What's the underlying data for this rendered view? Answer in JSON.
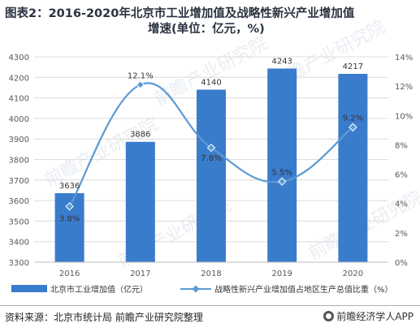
{
  "title_line1": "图表2：2016-2020年北京市工业增加值及战略性新兴产业增加值",
  "title_line2": "增速(单位：亿元，%)",
  "source": "资料来源：北京市统计局 前瞻产业研究院整理",
  "brand": "前瞻经济学人APP",
  "colors": {
    "bar": "#3a7ccc",
    "line": "#5b9bd5",
    "grid": "#dcdcdc",
    "axis_text": "#595959"
  },
  "chart_data": {
    "type": "bar",
    "categories": [
      "2016",
      "2017",
      "2018",
      "2019",
      "2020"
    ],
    "series": [
      {
        "name": "北京市工业增加值（亿元）",
        "type": "bar",
        "axis": "left",
        "values": [
          3636,
          3886,
          4140,
          4243,
          4217
        ],
        "labels": [
          "3636",
          "3886",
          "4140",
          "4243",
          "4217"
        ]
      },
      {
        "name": "战略性新兴产业增加值占地区生产总值比重（%）",
        "type": "line",
        "axis": "right",
        "values": [
          3.8,
          12.1,
          7.8,
          5.5,
          9.2
        ],
        "labels": [
          "3.8%",
          "12.1%",
          "7.8%",
          "5.5%",
          "9.2%"
        ]
      }
    ],
    "ylim_left": [
      3300,
      4300
    ],
    "yticks_left": [
      "3300",
      "3400",
      "3500",
      "3600",
      "3700",
      "3800",
      "3900",
      "4000",
      "4100",
      "4200",
      "4300"
    ],
    "ylim_right": [
      0,
      14
    ],
    "yticks_right": [
      "0%",
      "2%",
      "4%",
      "6%",
      "8%",
      "10%",
      "12%",
      "14%"
    ],
    "grid": true,
    "legend_position": "bottom",
    "watermark": "前瞻产业研究院"
  }
}
